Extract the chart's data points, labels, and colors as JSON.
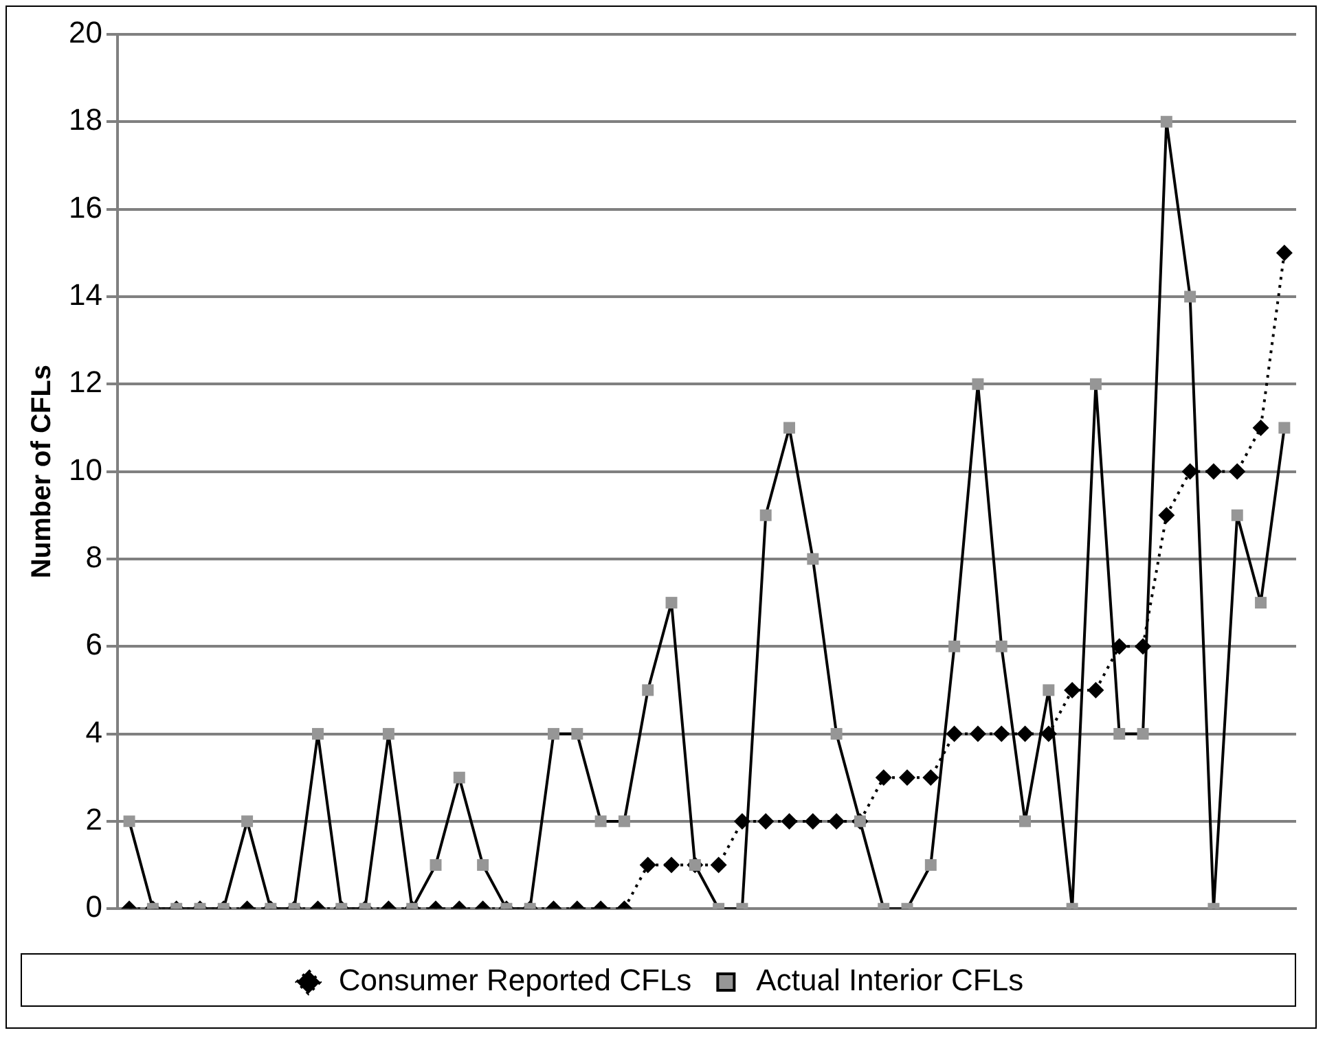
{
  "chart_data": {
    "type": "line",
    "ylabel": "Number of CFLs",
    "categories": [
      null,
      null,
      null,
      null,
      null,
      null,
      null,
      null,
      null,
      null,
      null,
      null,
      null,
      null,
      null,
      null,
      null,
      null,
      null,
      null,
      null,
      null,
      null,
      null,
      null,
      null,
      null,
      null,
      null,
      null,
      null,
      null,
      null,
      null,
      null,
      null,
      null,
      null,
      null,
      null,
      null,
      null,
      null,
      null,
      null,
      null,
      null,
      null,
      null,
      null
    ],
    "series": [
      {
        "name": "Consumer Reported CFLs",
        "color": "#000000",
        "marker": "diamond",
        "line_style": "dotted",
        "values": [
          0,
          0,
          0,
          0,
          0,
          0,
          0,
          0,
          0,
          0,
          0,
          0,
          0,
          0,
          0,
          0,
          0,
          0,
          0,
          0,
          0,
          0,
          1,
          1,
          1,
          1,
          2,
          2,
          2,
          2,
          2,
          2,
          3,
          3,
          3,
          4,
          4,
          4,
          4,
          4,
          5,
          5,
          6,
          6,
          9,
          10,
          10,
          10,
          11,
          15
        ]
      },
      {
        "name": "Actual Interior CFLs",
        "color": "#969696",
        "marker": "square",
        "line_style": "solid",
        "values": [
          2,
          0,
          0,
          0,
          0,
          2,
          0,
          0,
          4,
          0,
          0,
          4,
          0,
          1,
          3,
          1,
          0,
          0,
          4,
          4,
          2,
          2,
          5,
          7,
          1,
          0,
          0,
          9,
          11,
          8,
          4,
          2,
          0,
          0,
          1,
          6,
          12,
          6,
          2,
          5,
          0,
          12,
          4,
          4,
          18,
          14,
          0,
          9,
          7,
          11
        ]
      }
    ],
    "ylim": [
      0,
      20
    ],
    "yticks": [
      0,
      2,
      4,
      6,
      8,
      10,
      12,
      14,
      16,
      18,
      20
    ],
    "grid": "y",
    "legend": "bottom"
  }
}
